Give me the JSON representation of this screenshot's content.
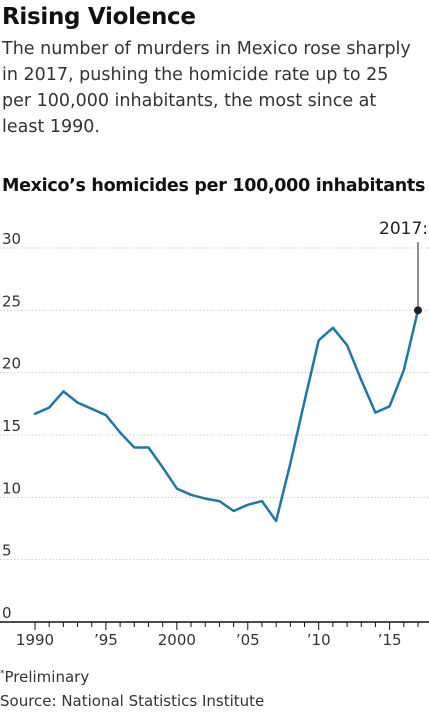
{
  "header": {
    "headline": "Rising Violence",
    "dek": "The number of murders in Mexico rose sharply in 2017, pushing the homicide rate up to 25 per 100,000 inhabitants, the most since at least 1990."
  },
  "chart_data": {
    "type": "line",
    "title": "Mexico’s homicides per 100,000 inhabitants",
    "xlabel": "",
    "ylabel": "",
    "x": [
      1990,
      1991,
      1992,
      1993,
      1994,
      1995,
      1996,
      1997,
      1998,
      1999,
      2000,
      2001,
      2002,
      2003,
      2004,
      2005,
      2006,
      2007,
      2008,
      2009,
      2010,
      2011,
      2012,
      2013,
      2014,
      2015,
      2016,
      2017
    ],
    "series": [
      {
        "values": [
          16.7,
          17.2,
          18.5,
          17.6,
          17.1,
          16.6,
          15.2,
          14.0,
          14.0,
          12.4,
          10.7,
          10.2,
          9.9,
          9.7,
          8.9,
          9.4,
          9.7,
          8.1,
          12.7,
          17.7,
          22.6,
          23.6,
          22.2,
          19.4,
          16.8,
          17.3,
          20.2,
          25.0
        ]
      }
    ],
    "xlim": [
      1989.7,
      2017.8
    ],
    "ylim": [
      0,
      30
    ],
    "y_ticks": [
      "0",
      "5",
      "10",
      "15",
      "20",
      "25",
      "30"
    ],
    "x_ticks": [
      {
        "value": 1990,
        "label": "1990"
      },
      {
        "value": 1995,
        "label": "'95"
      },
      {
        "value": 2000,
        "label": "2000"
      },
      {
        "value": 2005,
        "label": "'05"
      },
      {
        "value": 2010,
        "label": "'10"
      },
      {
        "value": 2015,
        "label": "'15"
      }
    ],
    "annotation": {
      "x": 2017,
      "y": 25,
      "label": "2017:"
    },
    "grid": true,
    "colors": {
      "line": "#1f77a8",
      "grid": "#cccccc",
      "axis": "#111111",
      "annotation": "#222222"
    }
  },
  "footer": {
    "footnote_marker": "*",
    "footnote": "Preliminary",
    "source": "Source: National Statistics Institute"
  }
}
